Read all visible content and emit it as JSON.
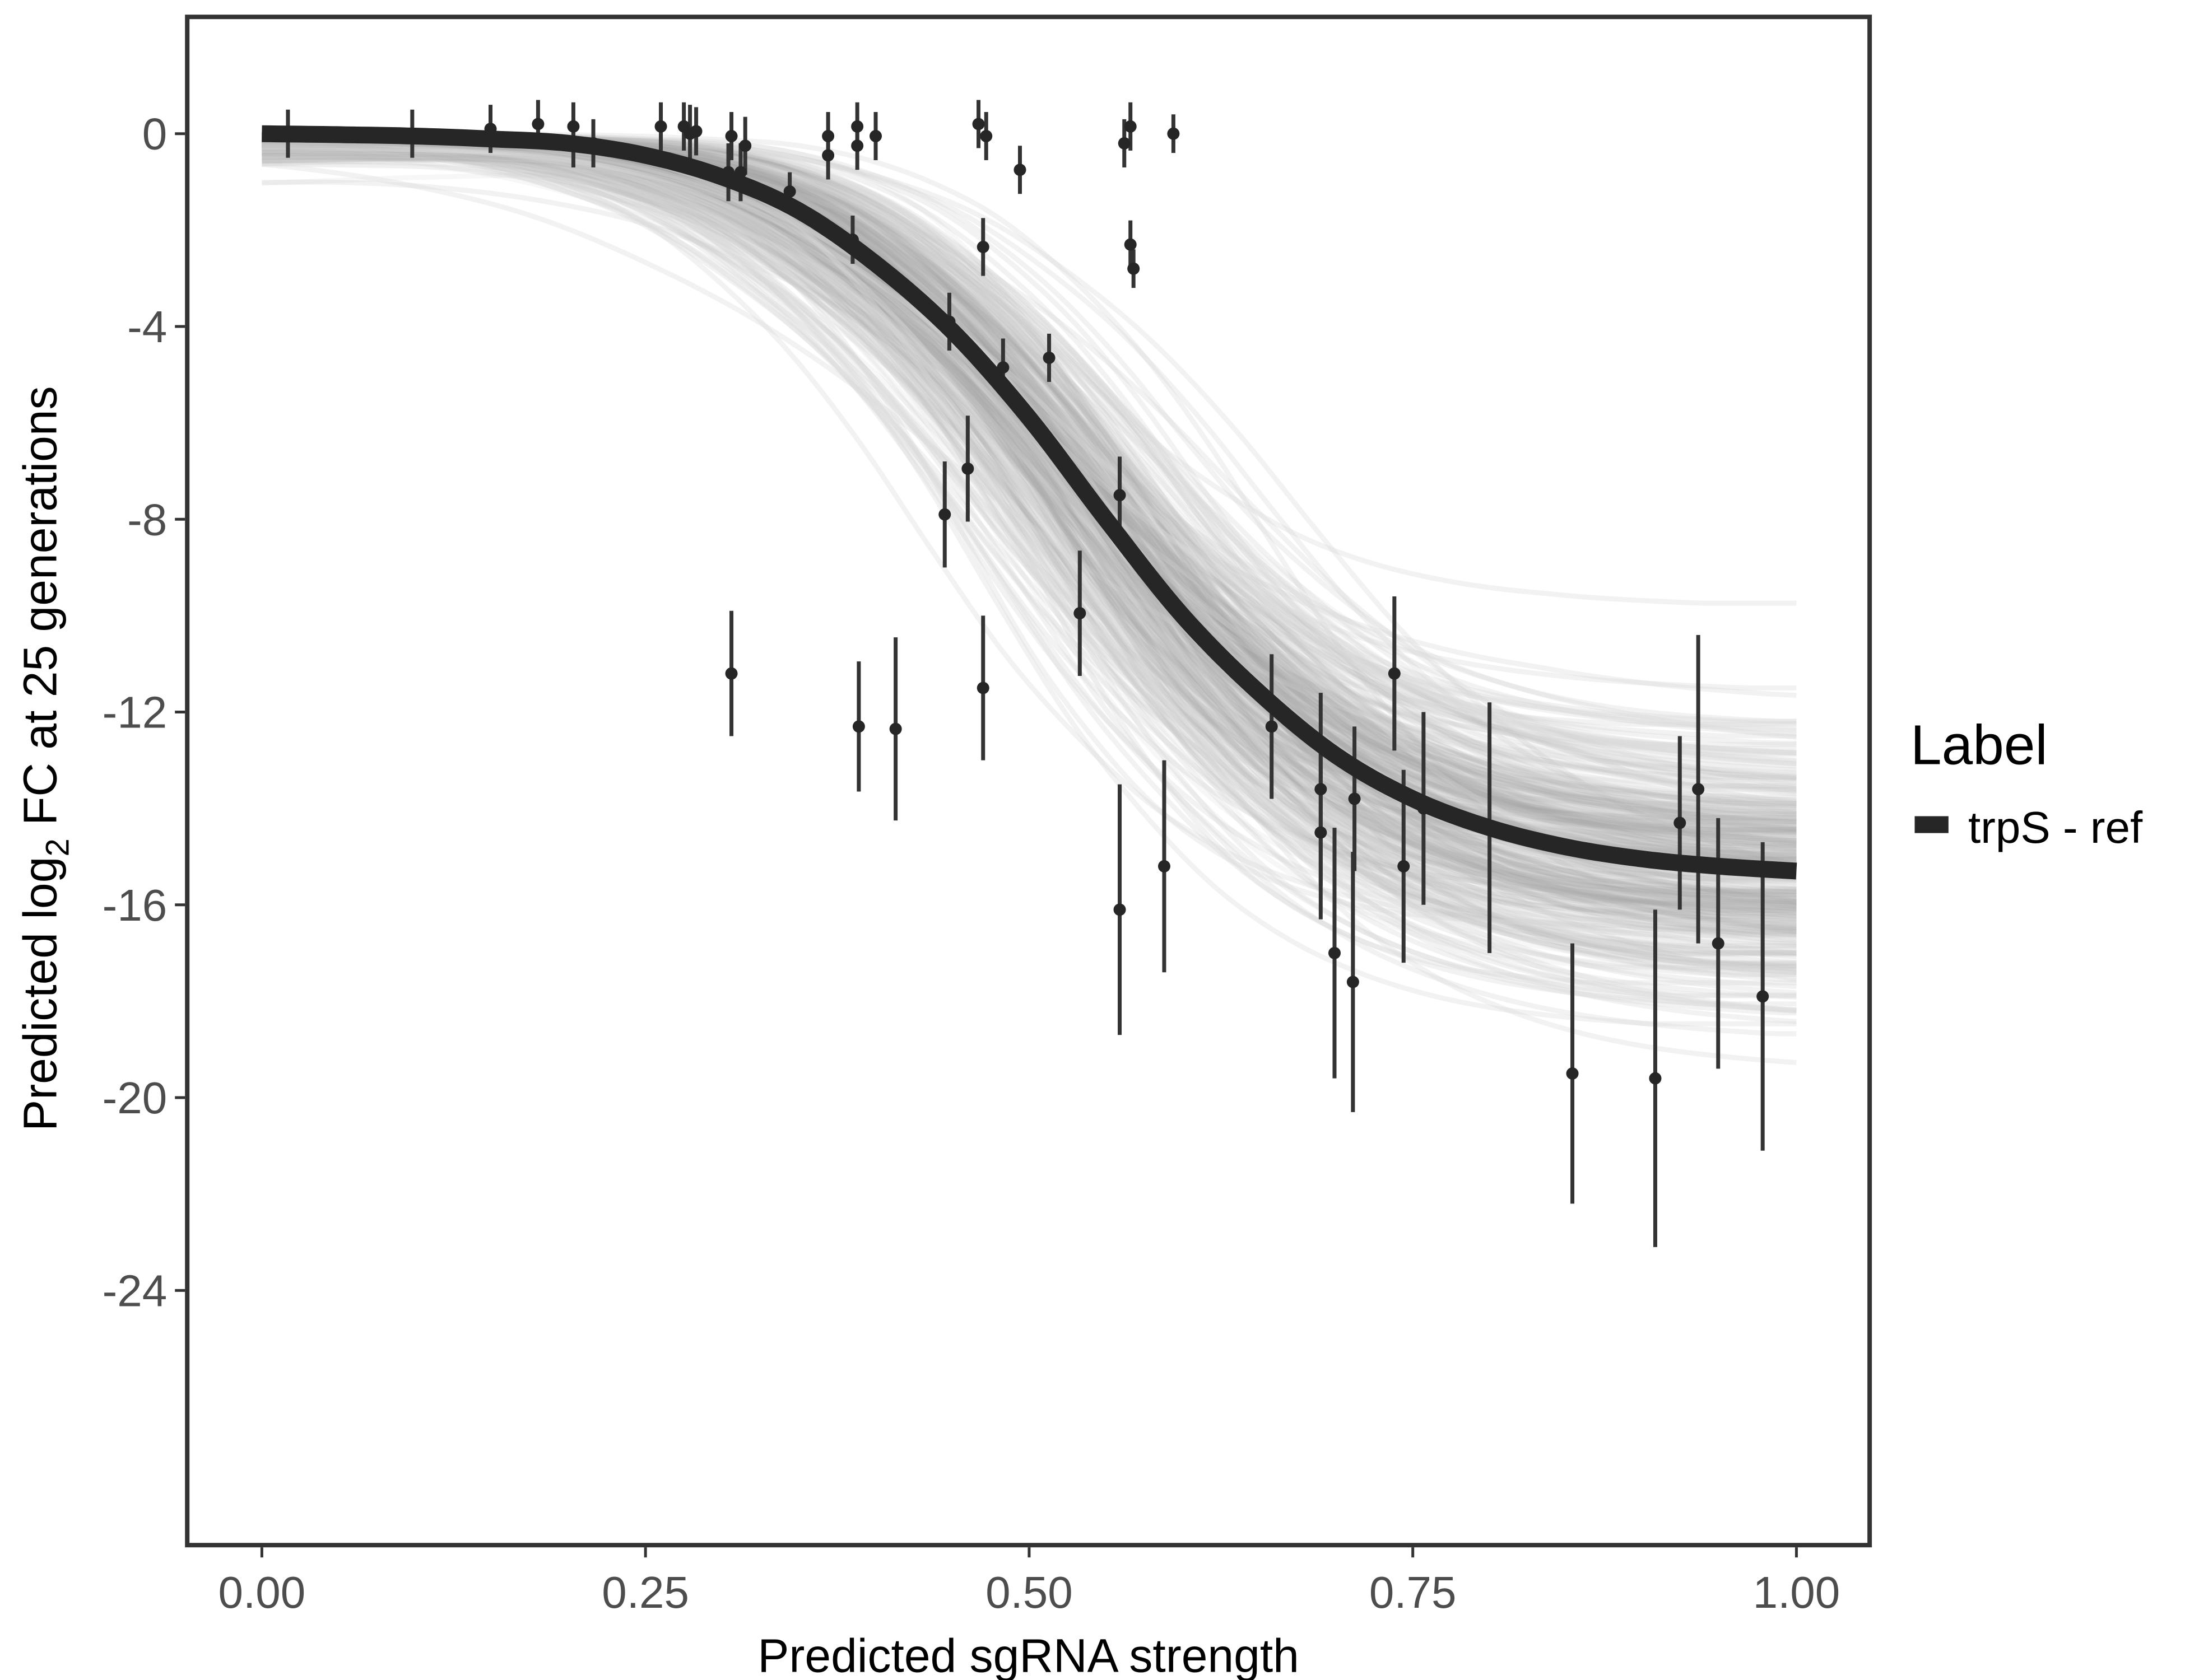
{
  "chart_data": {
    "type": "scatter",
    "title": "",
    "xlabel": "Predicted sgRNA strength",
    "ylabel_parts": [
      "Predicted  log",
      "2",
      " FC at 25 generations"
    ],
    "ylabel": "Predicted log2 FC at 25 generations",
    "xlim": [
      -0.05,
      1.05
    ],
    "ylim": [
      -29.3,
      2.4
    ],
    "x_ticks": [
      0,
      0.25,
      0.5,
      0.75,
      1.0
    ],
    "x_tick_labels": [
      "0.00",
      "0.25",
      "0.50",
      "0.75",
      "1.00"
    ],
    "y_ticks": [
      0,
      -4,
      -8,
      -12,
      -16,
      -20,
      -24
    ],
    "y_tick_labels": [
      "0",
      "-4",
      "-8",
      "-12",
      "-16",
      "-20",
      "-24"
    ],
    "grid": false,
    "legend": {
      "title": "Label",
      "placement": "right",
      "entries": [
        {
          "label": "trpS - ref",
          "color": "#262626"
        }
      ]
    },
    "colors": {
      "fit_line": "#262626",
      "posterior_draws": "#a6a6a6",
      "points": "#262626",
      "panel_border": "#333333"
    },
    "fit_curve": {
      "name": "trpS - ref",
      "x": [
        0,
        0.05,
        0.1,
        0.15,
        0.2,
        0.25,
        0.3,
        0.35,
        0.4,
        0.45,
        0.5,
        0.55,
        0.6,
        0.65,
        0.7,
        0.75,
        0.8,
        0.85,
        0.9,
        0.95,
        1.0
      ],
      "y": [
        0,
        -0.02,
        -0.05,
        -0.11,
        -0.2,
        -0.45,
        -0.9,
        -1.6,
        -2.7,
        -4.1,
        -5.9,
        -8.0,
        -10.0,
        -11.6,
        -12.9,
        -13.8,
        -14.4,
        -14.8,
        -15.05,
        -15.2,
        -15.3
      ]
    },
    "posterior_band": {
      "description": "many semi-transparent posterior draw curves",
      "upper_end_at_x1": -10.1,
      "lower_end_at_x1": -20.1,
      "lower_start_at_x0": -1.3
    },
    "points": [
      {
        "x": 0.017,
        "y": 0.0,
        "err": 0.5
      },
      {
        "x": 0.098,
        "y": 0.0,
        "err": 0.5
      },
      {
        "x": 0.149,
        "y": 0.1,
        "err": 0.5
      },
      {
        "x": 0.18,
        "y": 0.2,
        "err": 0.5
      },
      {
        "x": 0.203,
        "y": 0.15,
        "err": 0.5
      },
      {
        "x": 0.203,
        "y": -0.2,
        "err": 0.5
      },
      {
        "x": 0.216,
        "y": -0.2,
        "err": 0.5
      },
      {
        "x": 0.26,
        "y": 0.15,
        "err": 0.5
      },
      {
        "x": 0.275,
        "y": 0.15,
        "err": 0.5
      },
      {
        "x": 0.279,
        "y": 0.0,
        "err": 0.6
      },
      {
        "x": 0.283,
        "y": 0.05,
        "err": 0.5
      },
      {
        "x": 0.304,
        "y": -0.8,
        "err": 0.6
      },
      {
        "x": 0.306,
        "y": -0.05,
        "err": 0.5
      },
      {
        "x": 0.312,
        "y": -0.8,
        "err": 0.6
      },
      {
        "x": 0.315,
        "y": -0.25,
        "err": 0.6
      },
      {
        "x": 0.344,
        "y": -1.2,
        "err": 0.4
      },
      {
        "x": 0.369,
        "y": -0.05,
        "err": 0.5
      },
      {
        "x": 0.369,
        "y": -0.45,
        "err": 0.5
      },
      {
        "x": 0.385,
        "y": -2.2,
        "err": 0.5
      },
      {
        "x": 0.388,
        "y": 0.15,
        "err": 0.5
      },
      {
        "x": 0.388,
        "y": -0.25,
        "err": 0.5
      },
      {
        "x": 0.4,
        "y": -0.05,
        "err": 0.5
      },
      {
        "x": 0.467,
        "y": 0.2,
        "err": 0.5
      },
      {
        "x": 0.47,
        "y": -2.35,
        "err": 0.6
      },
      {
        "x": 0.472,
        "y": -0.05,
        "err": 0.5
      },
      {
        "x": 0.494,
        "y": -0.75,
        "err": 0.5
      },
      {
        "x": 0.562,
        "y": -0.2,
        "err": 0.5
      },
      {
        "x": 0.566,
        "y": 0.15,
        "err": 0.5
      },
      {
        "x": 0.566,
        "y": -2.3,
        "err": 0.5
      },
      {
        "x": 0.568,
        "y": -2.8,
        "err": 0.4
      },
      {
        "x": 0.594,
        "y": 0.0,
        "err": 0.4
      },
      {
        "x": 0.448,
        "y": -3.9,
        "err": 0.6
      },
      {
        "x": 0.483,
        "y": -4.85,
        "err": 0.6
      },
      {
        "x": 0.513,
        "y": -4.65,
        "err": 0.5
      },
      {
        "x": 0.445,
        "y": -7.9,
        "err": 1.1
      },
      {
        "x": 0.46,
        "y": -6.95,
        "err": 1.1
      },
      {
        "x": 0.559,
        "y": -7.5,
        "err": 0.8
      },
      {
        "x": 0.533,
        "y": -9.95,
        "err": 1.3
      },
      {
        "x": 0.306,
        "y": -11.2,
        "err": 1.3
      },
      {
        "x": 0.389,
        "y": -12.3,
        "err": 1.35
      },
      {
        "x": 0.413,
        "y": -12.35,
        "err": 1.9
      },
      {
        "x": 0.47,
        "y": -11.5,
        "err": 1.5
      },
      {
        "x": 0.559,
        "y": -16.1,
        "err": 2.6
      },
      {
        "x": 0.588,
        "y": -15.2,
        "err": 2.2
      },
      {
        "x": 0.658,
        "y": -12.3,
        "err": 1.5
      },
      {
        "x": 0.69,
        "y": -13.6,
        "err": 2.0
      },
      {
        "x": 0.69,
        "y": -14.5,
        "err": 1.8
      },
      {
        "x": 0.699,
        "y": -17.0,
        "err": 2.6
      },
      {
        "x": 0.711,
        "y": -17.6,
        "err": 2.7
      },
      {
        "x": 0.712,
        "y": -13.8,
        "err": 1.5
      },
      {
        "x": 0.738,
        "y": -11.2,
        "err": 1.6
      },
      {
        "x": 0.744,
        "y": -15.2,
        "err": 2.0
      },
      {
        "x": 0.757,
        "y": -14.0,
        "err": 2.0
      },
      {
        "x": 0.8,
        "y": -14.4,
        "err": 2.6
      },
      {
        "x": 0.854,
        "y": -19.5,
        "err": 2.7
      },
      {
        "x": 0.908,
        "y": -19.6,
        "err": 3.5
      },
      {
        "x": 0.924,
        "y": -14.3,
        "err": 1.8
      },
      {
        "x": 0.936,
        "y": -13.6,
        "err": 3.2
      },
      {
        "x": 0.949,
        "y": -16.8,
        "err": 2.6
      },
      {
        "x": 0.978,
        "y": -17.9,
        "err": 3.2
      }
    ]
  }
}
